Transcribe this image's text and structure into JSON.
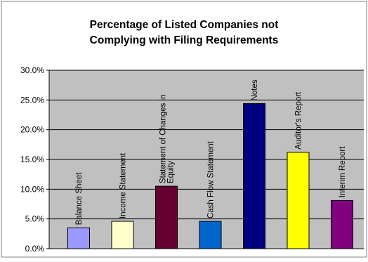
{
  "chart_data": {
    "type": "bar",
    "title_lines": [
      "Percentage of Listed Companies not",
      "Complying with Filing Requirements"
    ],
    "categories": [
      "Balance Sheet",
      "Income Statement",
      "Statement of Changes in Equity",
      "Cash Flow Statement",
      "Notes",
      "Auditor's Report",
      "Interim Report"
    ],
    "category_label_lines": [
      [
        "Balance Sheet"
      ],
      [
        "Income Statement"
      ],
      [
        "Statement of Changes in",
        "Equity"
      ],
      [
        "Cash Flow Statement"
      ],
      [
        "Notes"
      ],
      [
        "Auditor's Report"
      ],
      [
        "Interim Report"
      ]
    ],
    "values": [
      3.5,
      4.6,
      10.5,
      4.6,
      24.4,
      16.2,
      8.1
    ],
    "ylim": [
      0,
      30
    ],
    "yticks": [
      "0.0%",
      "5.0%",
      "10.0%",
      "15.0%",
      "20.0%",
      "25.0%",
      "30.0%"
    ],
    "grid": true,
    "legend": false,
    "plot_background": "#c0c0c0",
    "colors": [
      "#9999ff",
      "#ffffcc",
      "#660033",
      "#0066cc",
      "#000080",
      "#ffff00",
      "#800080"
    ]
  }
}
